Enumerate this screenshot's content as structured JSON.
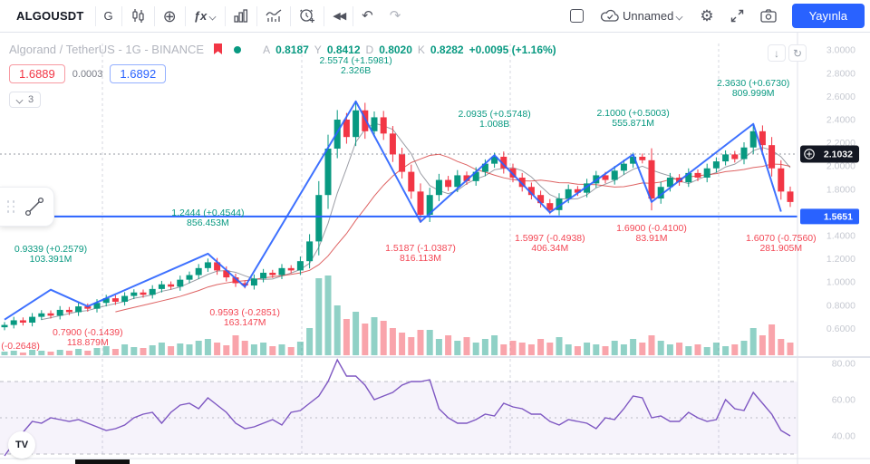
{
  "toolbar": {
    "symbol": "ALGOUSDT",
    "interval": "G",
    "fx_label": "ƒx",
    "cloud_label": "Unnamed",
    "publish_label": "Yayınla",
    "compare_glyph": "⊕",
    "rewind_glyph": "◀◀",
    "undo_glyph": "↶",
    "redo_glyph": "↷",
    "gear_glyph": "⚙"
  },
  "chart_buttons": {
    "scroll_down_glyph": "↓",
    "reset_glyph": "↻"
  },
  "legend": {
    "title": "Algorand / TetherUS - 1G - BINANCE",
    "ohlc": {
      "open_label": "A",
      "open": "0.8187",
      "high_label": "Y",
      "high": "0.8412",
      "low_label": "D",
      "low": "0.8020",
      "close_label": "K",
      "close": "0.8282",
      "change": "+0.0095 (+1.16%)"
    },
    "bid": "1.6889",
    "spread": "0.0003",
    "ask": "1.6892",
    "indicators_collapsed_count": "3"
  },
  "logo_text": "TV",
  "colors": {
    "accent": "#2962ff",
    "up": "#089981",
    "down": "#f23645",
    "rsi_line": "#7e57c2",
    "axis_text": "#c6c9d1",
    "tag_dark": "#131722",
    "ma_fast": "#787b86",
    "ma_slow": "#d32f2f"
  },
  "chart_data": {
    "type": "candlestick",
    "symbol": "ALGOUSDT",
    "interval": "1G",
    "exchange": "BINANCE",
    "price_axis_labels": [
      "3.0000",
      "2.8000",
      "2.6000",
      "2.4000",
      "2.2000",
      "2.0000",
      "1.8000",
      "1.6000",
      "1.4000",
      "1.2000",
      "1.0000",
      "0.8000",
      "0.6000"
    ],
    "crosshair_price": "2.1032",
    "horizontal_line_price": "1.5651",
    "candles_close": [
      0.63,
      0.67,
      0.65,
      0.7,
      0.73,
      0.71,
      0.76,
      0.74,
      0.79,
      0.77,
      0.82,
      0.86,
      0.83,
      0.88,
      0.91,
      0.89,
      0.94,
      0.98,
      0.96,
      1.02,
      1.06,
      1.12,
      1.17,
      1.1,
      1.04,
      0.99,
      0.97,
      1.03,
      1.08,
      1.06,
      1.12,
      1.1,
      1.18,
      1.35,
      1.75,
      2.15,
      2.4,
      2.25,
      2.48,
      2.3,
      2.42,
      2.28,
      2.1,
      1.95,
      1.78,
      1.58,
      1.75,
      1.88,
      1.82,
      1.92,
      1.87,
      1.95,
      2.02,
      2.08,
      1.98,
      1.9,
      1.82,
      1.75,
      1.68,
      1.62,
      1.72,
      1.8,
      1.77,
      1.85,
      1.92,
      1.88,
      1.96,
      2.02,
      2.08,
      2.05,
      1.72,
      1.82,
      1.9,
      1.86,
      1.94,
      1.9,
      1.98,
      2.04,
      2.1,
      2.06,
      2.16,
      2.3,
      2.18,
      1.98,
      1.78,
      1.69
    ],
    "volume": [
      4,
      5,
      3,
      6,
      5,
      4,
      6,
      5,
      7,
      5,
      8,
      10,
      7,
      12,
      9,
      8,
      11,
      14,
      10,
      13,
      12,
      16,
      18,
      14,
      11,
      22,
      16,
      12,
      14,
      10,
      12,
      9,
      15,
      30,
      85,
      88,
      55,
      40,
      48,
      35,
      42,
      38,
      30,
      25,
      20,
      28,
      28,
      18,
      22,
      16,
      20,
      14,
      18,
      22,
      12,
      16,
      14,
      12,
      18,
      14,
      20,
      12,
      10,
      14,
      12,
      10,
      16,
      12,
      18,
      14,
      22,
      16,
      12,
      14,
      10,
      12,
      9,
      14,
      10,
      12,
      16,
      30,
      22,
      34,
      18,
      14
    ],
    "zigzag_pivots": [
      {
        "index": 0,
        "price": "0.6760",
        "change": "(-0.2648)",
        "volume": "",
        "type": "low"
      },
      {
        "index": 5,
        "price": "0.9339",
        "change": "(+0.2579)",
        "volume": "103.391M",
        "type": "high"
      },
      {
        "index": 9,
        "price": "0.7900",
        "change": "(-0.1439)",
        "volume": "118.879M",
        "type": "low"
      },
      {
        "index": 22,
        "price": "1.2444",
        "change": "(+0.4544)",
        "volume": "856.453M",
        "type": "high"
      },
      {
        "index": 26,
        "price": "0.9593",
        "change": "(-0.2851)",
        "volume": "163.147M",
        "type": "low"
      },
      {
        "index": 38,
        "price": "2.5574",
        "change": "(+1.5981)",
        "volume": "2.326B",
        "type": "high"
      },
      {
        "index": 45,
        "price": "1.5187",
        "change": "(-1.0387)",
        "volume": "816.113M",
        "type": "low"
      },
      {
        "index": 53,
        "price": "2.0935",
        "change": "(+0.5748)",
        "volume": "1.008B",
        "type": "high"
      },
      {
        "index": 59,
        "price": "1.5997",
        "change": "(-0.4938)",
        "volume": "406.34M",
        "type": "low"
      },
      {
        "index": 68,
        "price": "2.1000",
        "change": "(+0.5003)",
        "volume": "555.871M",
        "type": "high"
      },
      {
        "index": 70,
        "price": "1.6900",
        "change": "(-0.4100)",
        "volume": "83.91M",
        "type": "low"
      },
      {
        "index": 81,
        "price": "2.3630",
        "change": "(+0.6730)",
        "volume": "809.999M",
        "type": "high"
      },
      {
        "index": 84,
        "price": "1.6070",
        "change": "(-0.7560)",
        "volume": "281.905M",
        "type": "low"
      }
    ],
    "rsi": {
      "values": [
        29,
        36,
        42,
        48,
        47,
        50,
        49,
        48,
        49,
        47,
        45,
        43,
        44,
        46,
        50,
        52,
        53,
        47,
        53,
        57,
        58,
        55,
        61,
        57,
        53,
        47,
        44,
        45,
        47,
        49,
        46,
        53,
        54,
        58,
        62,
        70,
        82,
        73,
        73,
        68,
        60,
        62,
        64,
        68,
        70,
        70,
        71,
        55,
        50,
        47,
        47,
        49,
        52,
        51,
        58,
        56,
        55,
        52,
        52,
        48,
        46,
        49,
        48,
        47,
        44,
        50,
        49,
        55,
        62,
        61,
        50,
        51,
        48,
        48,
        53,
        50,
        48,
        49,
        60,
        55,
        54,
        64,
        58,
        52,
        43,
        40
      ],
      "levels": [
        70,
        50,
        30
      ],
      "axis_labels": [
        "80.00",
        "60.00",
        "40.00"
      ],
      "axis_values": [
        80,
        60,
        40
      ]
    }
  }
}
